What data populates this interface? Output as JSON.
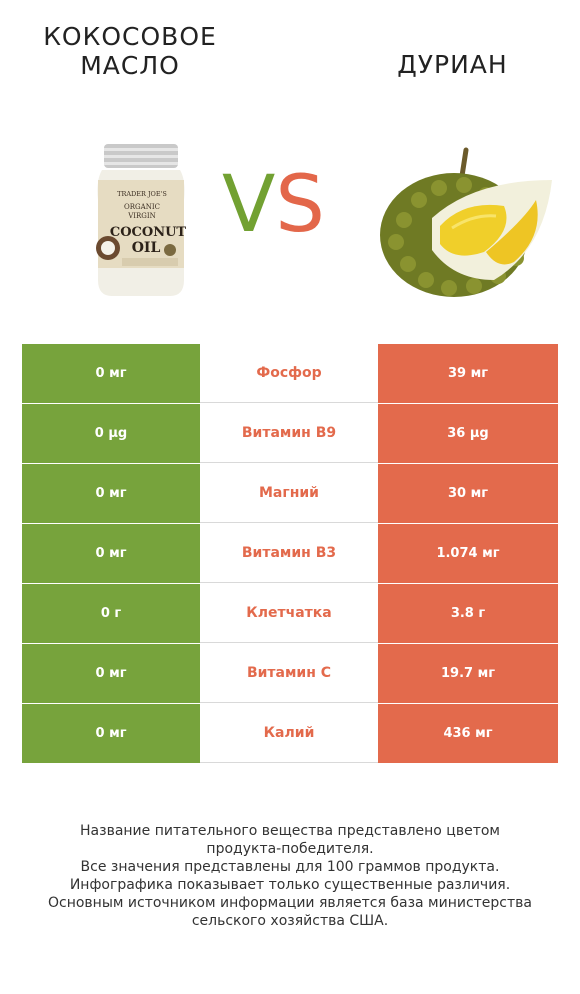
{
  "header": {
    "left_title_line1": "КОКОСОВОЕ",
    "left_title_line2": "МАСЛО",
    "right_title": "ДУРИАН",
    "vs_v": "V",
    "vs_s": "S"
  },
  "jar_label": {
    "brand": "TRADER JOE'S",
    "line1": "ORGANIC",
    "line2": "VIRGIN",
    "line3": "COCONUT",
    "line4": "OIL"
  },
  "colors": {
    "left_winner": "#77a33c",
    "right_winner": "#e36a4c"
  },
  "rows": [
    {
      "left": "0 мг",
      "nutrient": "Фосфор",
      "right": "39 мг"
    },
    {
      "left": "0 µg",
      "nutrient": "Витамин B9",
      "right": "36 µg"
    },
    {
      "left": "0 мг",
      "nutrient": "Магний",
      "right": "30 мг"
    },
    {
      "left": "0 мг",
      "nutrient": "Витамин B3",
      "right": "1.074 мг"
    },
    {
      "left": "0 г",
      "nutrient": "Клетчатка",
      "right": "3.8 г"
    },
    {
      "left": "0 мг",
      "nutrient": "Витамин C",
      "right": "19.7 мг"
    },
    {
      "left": "0 мг",
      "nutrient": "Калий",
      "right": "436 мг"
    }
  ],
  "footer": {
    "line1": "Название питательного вещества представлено цветом",
    "line2": "продукта-победителя.",
    "line3": "Все значения представлены для 100 граммов продукта.",
    "line4": "Инфографика показывает только существенные различия.",
    "line5": "Основным источником информации является база министерства",
    "line6": "сельского хозяйства США."
  }
}
